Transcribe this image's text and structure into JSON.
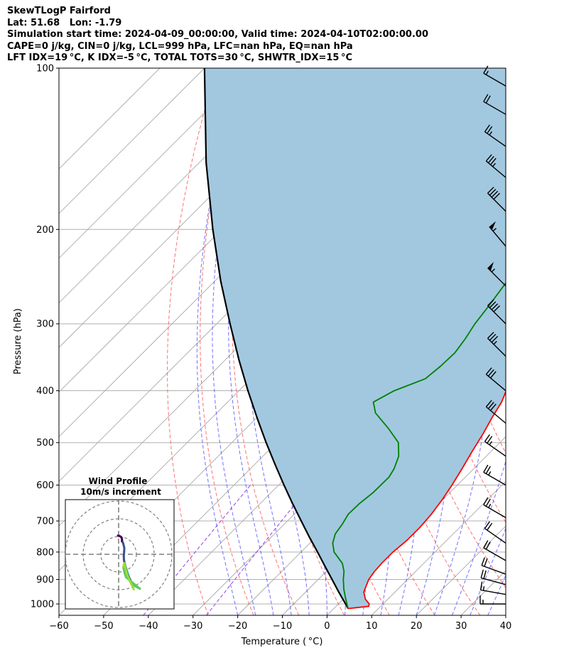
{
  "header": {
    "lines": [
      "SkewTLogP Fairford",
      "Lat: 51.68   Lon: -1.79",
      "Simulation start time: 2024-04-09_00:00:00, Valid time: 2024-04-10T02:00:00.00",
      "CAPE=0 j/kg, CIN=0 j/kg, LCL=999 hPa, LFC=nan hPa, EQ=nan hPa",
      "LFT IDX=19 °C, K IDX=-5 °C, TOTAL TOTS=30 °C, SHWTR_IDX=15 °C"
    ]
  },
  "chart_data": {
    "type": "line",
    "subtype": "skew-t log-p",
    "xlabel": "Temperature ( °C)",
    "ylabel": "Pressure (hPa)",
    "xlim": [
      -60,
      40
    ],
    "ylim": [
      1050,
      100
    ],
    "y_scale": "log",
    "x_ticks": [
      "−60",
      "−50",
      "−40",
      "−30",
      "−20",
      "−10",
      "0",
      "10",
      "20",
      "30",
      "40"
    ],
    "y_ticks": [
      {
        "p": 100,
        "label": "100"
      },
      {
        "p": 200,
        "label": "200"
      },
      {
        "p": 300,
        "label": "300"
      },
      {
        "p": 400,
        "label": "400"
      },
      {
        "p": 500,
        "label": "500"
      },
      {
        "p": 600,
        "label": "600"
      },
      {
        "p": 700,
        "label": "700"
      },
      {
        "p": 800,
        "label": "800"
      },
      {
        "p": 900,
        "label": "900"
      },
      {
        "p": 1000,
        "label": "1000"
      }
    ],
    "grid": true,
    "colors": {
      "temperature": "#ff0000",
      "dewpoint": "#008000",
      "parcel": "#000000",
      "cape_fill": "#a2c8e0",
      "dry_adiabat": "#ff4d4d",
      "moist_adiabat": "#4d4dff",
      "mixing_ratio": "#8a2be2",
      "isotherm": "#a9a9a9"
    },
    "series": [
      {
        "key": "temperature",
        "values": [
          [
            1020,
            3.2
          ],
          [
            1010,
            7.3
          ],
          [
            1000,
            6.9
          ],
          [
            980,
            5.0
          ],
          [
            950,
            3.0
          ],
          [
            900,
            1.3
          ],
          [
            870,
            0.8
          ],
          [
            840,
            0.6
          ],
          [
            800,
            0.6
          ],
          [
            760,
            1.1
          ],
          [
            720,
            1.1
          ],
          [
            680,
            0.7
          ],
          [
            640,
            -0.1
          ],
          [
            600,
            -1.2
          ],
          [
            560,
            -2.6
          ],
          [
            520,
            -4.2
          ],
          [
            480,
            -5.8
          ],
          [
            450,
            -7.3
          ],
          [
            420,
            -8.7
          ],
          [
            390,
            -11.0
          ],
          [
            360,
            -13.8
          ],
          [
            330,
            -16.5
          ],
          [
            310,
            -18.5
          ],
          [
            300,
            -19.2
          ],
          [
            285,
            -20.0
          ],
          [
            265,
            -21.8
          ],
          [
            245,
            -24.1
          ],
          [
            230,
            -26.0
          ],
          [
            220,
            -27.7
          ],
          [
            210,
            -28.9
          ],
          [
            200,
            -30.0
          ],
          [
            190,
            -31.0
          ],
          [
            180,
            -32.0
          ],
          [
            170,
            -32.9
          ],
          [
            160,
            -34.0
          ],
          [
            150,
            -35.3
          ],
          [
            140,
            -37.0
          ],
          [
            130,
            -38.7
          ],
          [
            120,
            -40.0
          ],
          [
            110,
            -42.2
          ],
          [
            100,
            -43.7
          ]
        ]
      },
      {
        "key": "dewpoint",
        "values": [
          [
            1020,
            3.2
          ],
          [
            980,
            0.6
          ],
          [
            940,
            -2.0
          ],
          [
            900,
            -4.4
          ],
          [
            870,
            -6.0
          ],
          [
            840,
            -8.2
          ],
          [
            800,
            -12.6
          ],
          [
            770,
            -14.9
          ],
          [
            740,
            -16.4
          ],
          [
            710,
            -17.0
          ],
          [
            680,
            -17.9
          ],
          [
            650,
            -17.8
          ],
          [
            620,
            -17.2
          ],
          [
            580,
            -17.1
          ],
          [
            560,
            -17.8
          ],
          [
            530,
            -19.6
          ],
          [
            500,
            -22.7
          ],
          [
            470,
            -28.2
          ],
          [
            440,
            -34.5
          ],
          [
            420,
            -37.4
          ],
          [
            400,
            -35.3
          ],
          [
            380,
            -31.0
          ],
          [
            360,
            -30.4
          ],
          [
            340,
            -30.2
          ],
          [
            320,
            -31.0
          ],
          [
            300,
            -32.2
          ],
          [
            280,
            -33.0
          ],
          [
            260,
            -34.0
          ],
          [
            245,
            -34.8
          ],
          [
            235,
            -35.5
          ],
          [
            225,
            -36.5
          ],
          [
            215,
            -38.5
          ],
          [
            205,
            -40.0
          ],
          [
            195,
            -42.1
          ],
          [
            180,
            -44.0
          ],
          [
            165,
            -46.0
          ],
          [
            150,
            -47.5
          ],
          [
            140,
            -48.0
          ],
          [
            130,
            -49.0
          ],
          [
            120,
            -49.8
          ],
          [
            110,
            -50.5
          ],
          [
            100,
            -51.3
          ]
        ]
      },
      {
        "key": "parcel",
        "values": [
          [
            1020,
            3.2
          ],
          [
            1000,
            1.6
          ],
          [
            950,
            -2.6
          ],
          [
            900,
            -6.9
          ],
          [
            850,
            -11.5
          ],
          [
            800,
            -16.3
          ],
          [
            750,
            -21.5
          ],
          [
            700,
            -26.9
          ],
          [
            650,
            -32.7
          ],
          [
            600,
            -38.8
          ],
          [
            550,
            -45.3
          ],
          [
            500,
            -52.3
          ],
          [
            450,
            -59.8
          ],
          [
            400,
            -68.0
          ],
          [
            350,
            -77.0
          ],
          [
            300,
            -87.0
          ],
          [
            250,
            -98.6
          ],
          [
            200,
            -112.0
          ],
          [
            150,
            -128.5
          ],
          [
            100,
            -150.0
          ]
        ]
      }
    ],
    "wind_barbs": {
      "side": "right",
      "levels": [
        {
          "p": 1000,
          "speed_kt": 15,
          "dir_deg": 270
        },
        {
          "p": 960,
          "speed_kt": 15,
          "dir_deg": 280
        },
        {
          "p": 920,
          "speed_kt": 20,
          "dir_deg": 285
        },
        {
          "p": 880,
          "speed_kt": 20,
          "dir_deg": 290
        },
        {
          "p": 830,
          "speed_kt": 20,
          "dir_deg": 300
        },
        {
          "p": 770,
          "speed_kt": 20,
          "dir_deg": 305
        },
        {
          "p": 690,
          "speed_kt": 25,
          "dir_deg": 300
        },
        {
          "p": 600,
          "speed_kt": 25,
          "dir_deg": 300
        },
        {
          "p": 530,
          "speed_kt": 25,
          "dir_deg": 305
        },
        {
          "p": 460,
          "speed_kt": 30,
          "dir_deg": 310
        },
        {
          "p": 400,
          "speed_kt": 30,
          "dir_deg": 310
        },
        {
          "p": 345,
          "speed_kt": 35,
          "dir_deg": 315
        },
        {
          "p": 300,
          "speed_kt": 40,
          "dir_deg": 315
        },
        {
          "p": 255,
          "speed_kt": 55,
          "dir_deg": 315
        },
        {
          "p": 215,
          "speed_kt": 55,
          "dir_deg": 320
        },
        {
          "p": 185,
          "speed_kt": 40,
          "dir_deg": 315
        },
        {
          "p": 160,
          "speed_kt": 35,
          "dir_deg": 310
        },
        {
          "p": 140,
          "speed_kt": 25,
          "dir_deg": 305
        },
        {
          "p": 122,
          "speed_kt": 20,
          "dir_deg": 300
        },
        {
          "p": 108,
          "speed_kt": 15,
          "dir_deg": 300
        }
      ]
    },
    "hodograph": {
      "title": "Wind Profile",
      "subtitle": "10m/s increment",
      "rings_ms": [
        10,
        20,
        30
      ],
      "colormap": [
        "#440154",
        "#3b528b",
        "#21918c",
        "#5ec962",
        "#a0da39"
      ],
      "points": [
        [
          -0.4,
          10.5
        ],
        [
          0.5,
          10.3
        ],
        [
          1.3,
          9.8
        ],
        [
          1.8,
          9.1
        ],
        [
          1.9,
          8.2
        ],
        [
          1.9,
          7.4
        ],
        [
          2.3,
          6.7
        ],
        [
          2.6,
          6.1
        ],
        [
          3.2,
          3.6
        ],
        [
          3.1,
          1.5
        ],
        [
          2.9,
          -1.0
        ],
        [
          3.0,
          -3.2
        ],
        [
          3.5,
          -5.5
        ],
        [
          4.2,
          -8.0
        ],
        [
          5.0,
          -10.5
        ],
        [
          5.8,
          -12.8
        ],
        [
          6.6,
          -14.5
        ],
        [
          7.5,
          -16.0
        ],
        [
          8.8,
          -17.8
        ],
        [
          10.5,
          -18.6
        ],
        [
          12.0,
          -19.4
        ],
        [
          4.2,
          -13.0
        ],
        [
          3.2,
          -10.0
        ],
        [
          2.6,
          -7.0
        ],
        [
          3.2,
          -5.0
        ],
        [
          4.0,
          -8.5
        ],
        [
          5.0,
          -12.0
        ],
        [
          6.2,
          -15.0
        ],
        [
          7.8,
          -18.0
        ],
        [
          8.5,
          -19.8
        ]
      ]
    }
  }
}
